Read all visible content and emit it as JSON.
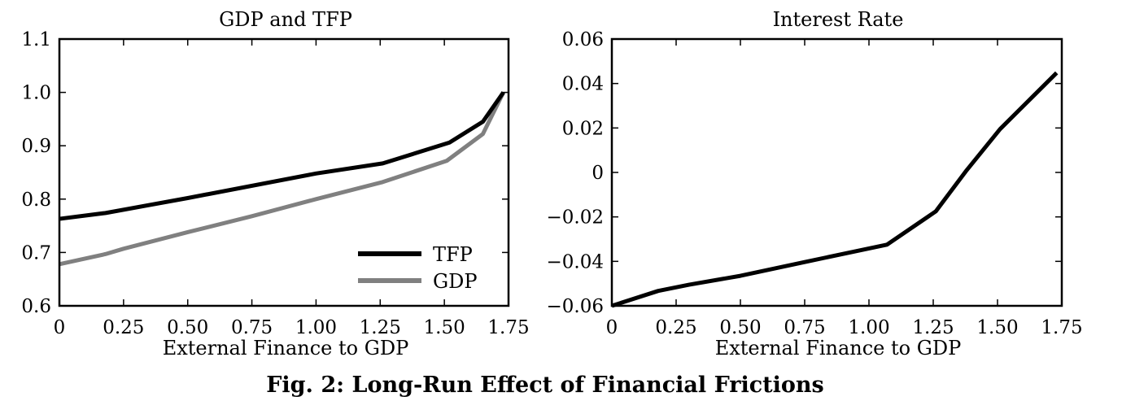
{
  "caption": "Fig. 2: Long-Run Effect of Financial Frictions",
  "colors": {
    "tfp": "#000000",
    "gdp": "#808080",
    "interest": "#000000"
  },
  "chart_data": [
    {
      "type": "line",
      "title": "GDP and TFP",
      "xlabel": "External Finance to GDP",
      "ylabel": "",
      "xlim": [
        0,
        1.75
      ],
      "ylim": [
        0.6,
        1.1
      ],
      "xticks": [
        0,
        0.25,
        0.5,
        0.75,
        1.0,
        1.25,
        1.5,
        1.75
      ],
      "xtick_labels": [
        "0",
        "0.25",
        "0.50",
        "0.75",
        "1.00",
        "1.25",
        "1.50",
        "1.75"
      ],
      "yticks": [
        0.6,
        0.7,
        0.8,
        0.9,
        1.0,
        1.1
      ],
      "ytick_labels": [
        "0.6",
        "0.7",
        "0.8",
        "0.9",
        "1.0",
        "1.1"
      ],
      "grid": false,
      "legend": "bottom-right",
      "series": [
        {
          "name": "TFP",
          "color": "#000000",
          "x": [
            0,
            0.18,
            0.5,
            1.0,
            1.26,
            1.52,
            1.65,
            1.73
          ],
          "y": [
            0.763,
            0.774,
            0.802,
            0.848,
            0.867,
            0.906,
            0.945,
            1.0
          ]
        },
        {
          "name": "GDP",
          "color": "#808080",
          "x": [
            0,
            0.18,
            0.25,
            0.5,
            0.75,
            1.0,
            1.26,
            1.51,
            1.65,
            1.73
          ],
          "y": [
            0.678,
            0.697,
            0.707,
            0.738,
            0.768,
            0.8,
            0.832,
            0.872,
            0.922,
            1.0
          ]
        }
      ]
    },
    {
      "type": "line",
      "title": "Interest Rate",
      "xlabel": "External Finance to GDP",
      "ylabel": "",
      "xlim": [
        0,
        1.75
      ],
      "ylim": [
        -0.06,
        0.06
      ],
      "xticks": [
        0,
        0.25,
        0.5,
        0.75,
        1.0,
        1.25,
        1.5,
        1.75
      ],
      "xtick_labels": [
        "0",
        "0.25",
        "0.50",
        "0.75",
        "1.00",
        "1.25",
        "1.50",
        "1.75"
      ],
      "yticks": [
        -0.06,
        -0.04,
        -0.02,
        0,
        0.02,
        0.04,
        0.06
      ],
      "ytick_labels": [
        "−0.06",
        "−0.04",
        "−0.02",
        "0",
        "0.02",
        "0.04",
        "0.06"
      ],
      "grid": false,
      "series": [
        {
          "color": "#000000",
          "x": [
            0,
            0.18,
            0.3,
            0.5,
            0.75,
            1.07,
            1.26,
            1.38,
            1.51,
            1.61,
            1.73
          ],
          "y": [
            -0.06,
            -0.0533,
            -0.0505,
            -0.0465,
            -0.0403,
            -0.0325,
            -0.0175,
            0.001,
            0.0195,
            0.031,
            0.0448
          ]
        }
      ]
    }
  ]
}
